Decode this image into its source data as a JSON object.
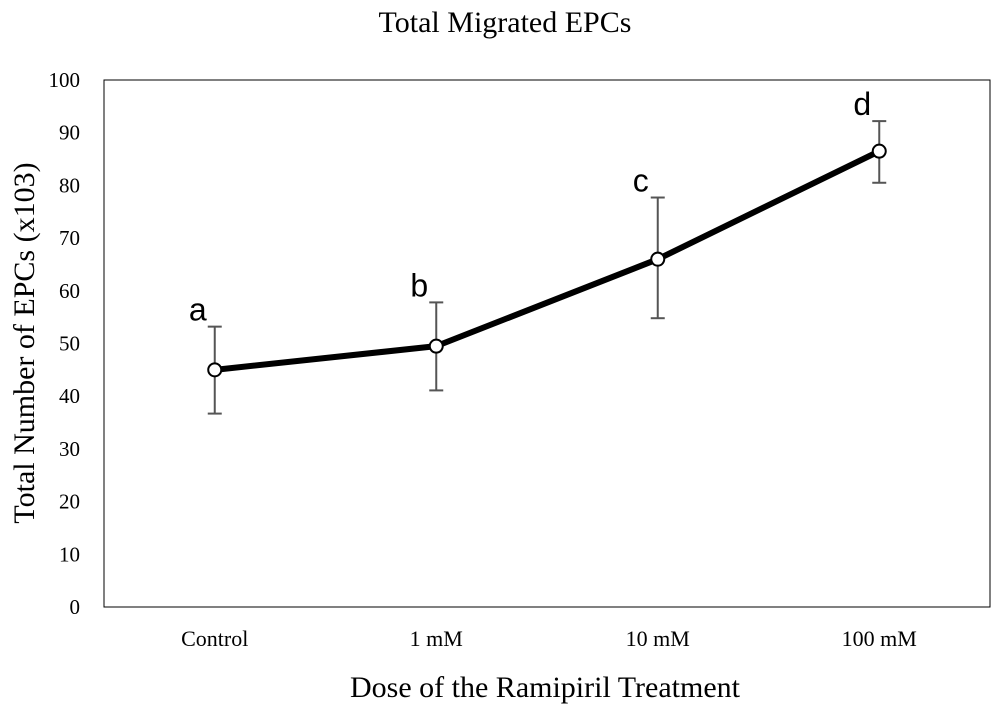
{
  "chart_data": {
    "type": "line",
    "title": "Total Migrated EPCs",
    "xlabel": "Dose of the Ramipiril Treatment",
    "ylabel": "Total Number of EPCs (x103)",
    "categories": [
      "Control",
      "1 mM",
      "10 mM",
      "100 mM"
    ],
    "series": [
      {
        "values": [
          45,
          49.5,
          66,
          86.5
        ],
        "error_upper": [
          53.2,
          57.8,
          77.7,
          92.2
        ],
        "error_lower": [
          36.7,
          41.1,
          54.8,
          80.5
        ],
        "point_labels": [
          "a",
          "b",
          "c",
          "d"
        ],
        "line_color": "#000000",
        "marker": "open-circle"
      }
    ],
    "ylim": [
      0,
      100
    ],
    "yticks": [
      0,
      10,
      20,
      30,
      40,
      50,
      60,
      70,
      80,
      90,
      100
    ],
    "grid": false,
    "legend": "none"
  }
}
